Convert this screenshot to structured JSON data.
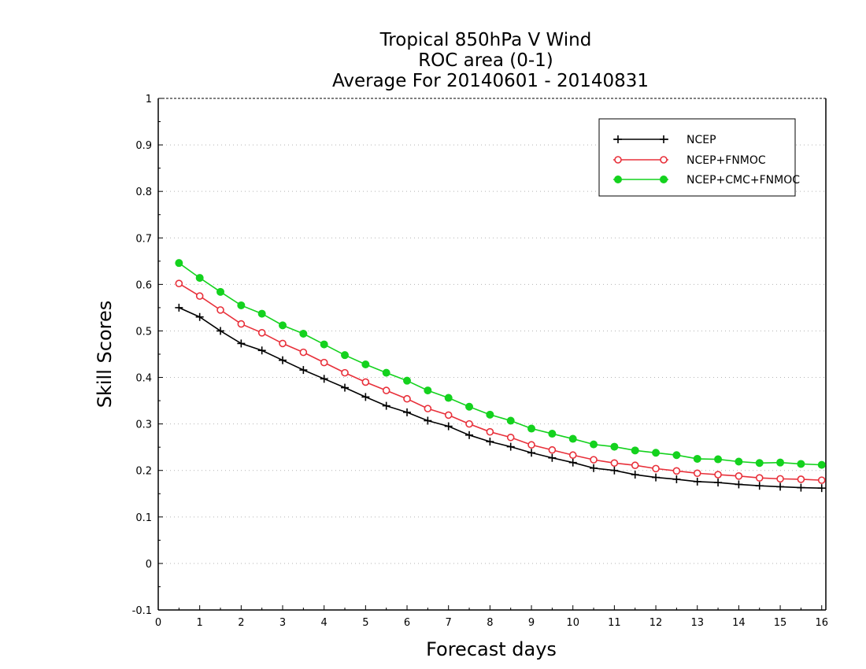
{
  "chart_data": {
    "type": "line",
    "title": [
      "Tropical 850hPa V Wind",
      "ROC area (0-1)",
      "Average For 20140601 - 20140831"
    ],
    "xlabel": "Forecast days",
    "ylabel": "Skill Scores",
    "xlim": [
      0,
      16.1
    ],
    "ylim": [
      -0.1,
      1
    ],
    "xticks": [
      0,
      1,
      2,
      3,
      4,
      5,
      6,
      7,
      8,
      9,
      10,
      11,
      12,
      13,
      14,
      15,
      16
    ],
    "yticks": [
      -0.1,
      0,
      0.1,
      0.2,
      0.3,
      0.4,
      0.5,
      0.6,
      0.7,
      0.8,
      0.9,
      1
    ],
    "ytick_labels": [
      "-0.1",
      "0",
      "0.1",
      "0.2",
      "0.3",
      "0.4",
      "0.5",
      "0.6",
      "0.7",
      "0.8",
      "0.9",
      "1"
    ],
    "grid": "horizontal-dotted",
    "legend_position": "top-right",
    "x": [
      0.5,
      1,
      1.5,
      2,
      2.5,
      3,
      3.5,
      4,
      4.5,
      5,
      5.5,
      6,
      6.5,
      7,
      7.5,
      8,
      8.5,
      9,
      9.5,
      10,
      10.5,
      11,
      11.5,
      12,
      12.5,
      13,
      13.5,
      14,
      14.5,
      15,
      15.5,
      16
    ],
    "series": [
      {
        "name": "NCEP",
        "color": "#000000",
        "marker": "plus",
        "values": [
          0.55,
          0.53,
          0.5,
          0.473,
          0.458,
          0.437,
          0.416,
          0.397,
          0.378,
          0.358,
          0.339,
          0.325,
          0.307,
          0.295,
          0.276,
          0.262,
          0.251,
          0.238,
          0.227,
          0.217,
          0.205,
          0.2,
          0.191,
          0.185,
          0.181,
          0.176,
          0.174,
          0.17,
          0.167,
          0.165,
          0.163,
          0.162
        ]
      },
      {
        "name": "NCEP+FNMOC",
        "color": "#e8303a",
        "marker": "open-circle",
        "values": [
          0.602,
          0.575,
          0.545,
          0.515,
          0.496,
          0.473,
          0.454,
          0.432,
          0.41,
          0.39,
          0.372,
          0.354,
          0.333,
          0.319,
          0.3,
          0.283,
          0.271,
          0.255,
          0.244,
          0.233,
          0.223,
          0.216,
          0.211,
          0.204,
          0.199,
          0.194,
          0.191,
          0.188,
          0.184,
          0.182,
          0.181,
          0.179
        ]
      },
      {
        "name": "NCEP+CMC+FNMOC",
        "color": "#14d21e",
        "marker": "filled-circle",
        "values": [
          0.646,
          0.614,
          0.584,
          0.555,
          0.537,
          0.512,
          0.494,
          0.471,
          0.448,
          0.428,
          0.41,
          0.393,
          0.372,
          0.356,
          0.337,
          0.32,
          0.307,
          0.29,
          0.279,
          0.268,
          0.256,
          0.251,
          0.243,
          0.238,
          0.233,
          0.225,
          0.224,
          0.219,
          0.216,
          0.217,
          0.214,
          0.212
        ]
      }
    ]
  }
}
